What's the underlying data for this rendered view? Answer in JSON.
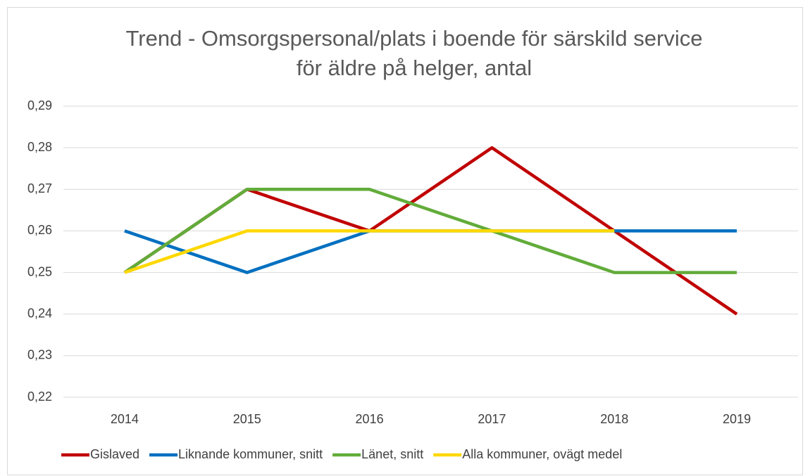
{
  "chart_data": {
    "type": "line",
    "title": "Trend - Omsorgspersonal/plats i boende för särskild service för äldre på helger, antal",
    "categories": [
      "2014",
      "2015",
      "2016",
      "2017",
      "2018",
      "2019"
    ],
    "series": [
      {
        "name": "Gislaved",
        "color": "#c00000",
        "values": [
          0.25,
          0.27,
          0.26,
          0.28,
          0.26,
          0.24
        ]
      },
      {
        "name": "Liknande kommuner, snitt",
        "color": "#0070c0",
        "values": [
          0.26,
          0.25,
          0.26,
          0.26,
          0.26,
          0.26
        ]
      },
      {
        "name": "Länet, snitt",
        "color": "#62ac3a",
        "values": [
          0.25,
          0.27,
          0.27,
          0.26,
          0.25,
          0.25
        ]
      },
      {
        "name": "Alla kommuner, ovägt medel",
        "color": "#ffd800",
        "values": [
          0.25,
          0.26,
          0.26,
          0.26,
          0.26,
          null
        ]
      }
    ],
    "ylim": [
      0.22,
      0.29
    ],
    "yticks": [
      {
        "value": 0.22,
        "label": "0,22"
      },
      {
        "value": 0.23,
        "label": "0,23"
      },
      {
        "value": 0.24,
        "label": "0,24"
      },
      {
        "value": 0.25,
        "label": "0,25"
      },
      {
        "value": 0.26,
        "label": "0,26"
      },
      {
        "value": 0.27,
        "label": "0,27"
      },
      {
        "value": 0.28,
        "label": "0,28"
      },
      {
        "value": 0.29,
        "label": "0,29"
      }
    ],
    "grid": true,
    "legend": "bottom"
  }
}
